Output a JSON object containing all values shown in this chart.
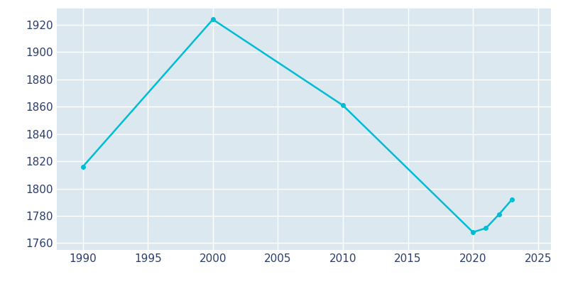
{
  "years": [
    1990,
    2000,
    2010,
    2020,
    2021,
    2022,
    2023
  ],
  "population": [
    1816,
    1924,
    1861,
    1768,
    1771,
    1781,
    1792
  ],
  "line_color": "#00bcd4",
  "fig_bg_color": "#ffffff",
  "plot_bg_color": "#dce8f0",
  "grid_color": "#ffffff",
  "tick_color": "#2b3d6b",
  "xlim": [
    1988,
    2026
  ],
  "ylim": [
    1755,
    1932
  ],
  "xticks": [
    1990,
    1995,
    2000,
    2005,
    2010,
    2015,
    2020,
    2025
  ],
  "yticks": [
    1760,
    1780,
    1800,
    1820,
    1840,
    1860,
    1880,
    1900,
    1920
  ],
  "linewidth": 1.8,
  "marker": "o",
  "markersize": 4,
  "tick_labelsize": 11
}
